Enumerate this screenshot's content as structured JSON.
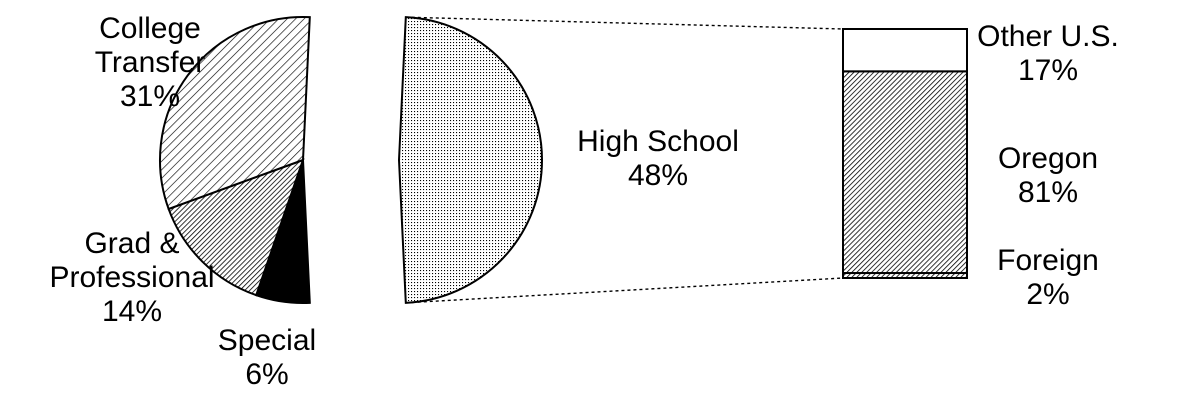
{
  "chart_data": [
    {
      "type": "pie",
      "title": "",
      "slices": [
        {
          "name": "High School",
          "value": 48,
          "label_lines": [
            "High School",
            "48%"
          ],
          "pattern": "dots",
          "exploded": true
        },
        {
          "name": "Special",
          "value": 6,
          "label_lines": [
            "Special",
            "6%"
          ],
          "pattern": "solid"
        },
        {
          "name": "Grad & Professional",
          "value": 14,
          "label_lines": [
            "Grad &",
            "Professional",
            "14%"
          ],
          "pattern": "dense-hatch"
        },
        {
          "name": "College Transfer",
          "value": 31,
          "label_lines": [
            "College",
            "Transfer",
            "31%"
          ],
          "pattern": "light-hatch"
        }
      ]
    },
    {
      "type": "bar",
      "stacked": true,
      "breakdown_of": "High School",
      "segments": [
        {
          "name": "Foreign",
          "value": 2,
          "label_lines": [
            "Foreign",
            "2%"
          ],
          "pattern": "dense-hatch"
        },
        {
          "name": "Oregon",
          "value": 81,
          "label_lines": [
            "Oregon",
            "81%"
          ],
          "pattern": "dense-hatch"
        },
        {
          "name": "Other U.S.",
          "value": 17,
          "label_lines": [
            "Other U.S.",
            "17%"
          ],
          "pattern": "none"
        }
      ]
    }
  ],
  "colors": {
    "ink": "#000000",
    "background": "#ffffff"
  }
}
